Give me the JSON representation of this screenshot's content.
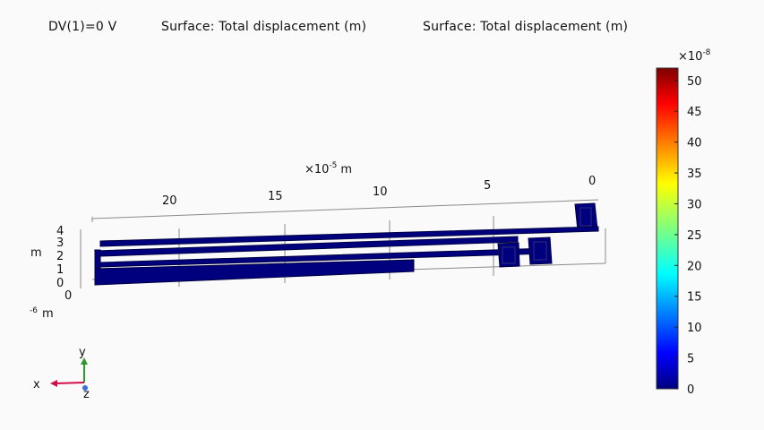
{
  "title_bar": {
    "expression": "DV(1)=0 V",
    "surface_label_1": "Surface: Total displacement (m)",
    "surface_label_2": "Surface: Total displacement (m)"
  },
  "axis_3d": {
    "x_scale": "×10",
    "x_exponent": "-5",
    "x_unit": "m",
    "x_ticks": [
      "20",
      "15",
      "10",
      "5",
      "0"
    ],
    "y_ticks": [
      "4",
      "3",
      "2",
      "1",
      "0"
    ],
    "y_unit_left": "m",
    "z_tick": "0",
    "z_exponent": "-6",
    "z_unit": "m"
  },
  "triad": {
    "x_label": "x",
    "y_label": "y",
    "z_label": "z"
  },
  "colorbar": {
    "multiplier": "×10",
    "exponent": "-8",
    "ticks": [
      "50",
      "45",
      "40",
      "35",
      "30",
      "25",
      "20",
      "15",
      "10",
      "5",
      "0"
    ],
    "range": [
      0,
      52
    ]
  },
  "colors": {
    "structure_fill": "#00007f",
    "structure_edge": "#000040",
    "axis_line": "#8a8a8a",
    "triad_x": "#d0104a",
    "triad_y": "#2e9a2e",
    "triad_z": "#3a6fd8"
  }
}
